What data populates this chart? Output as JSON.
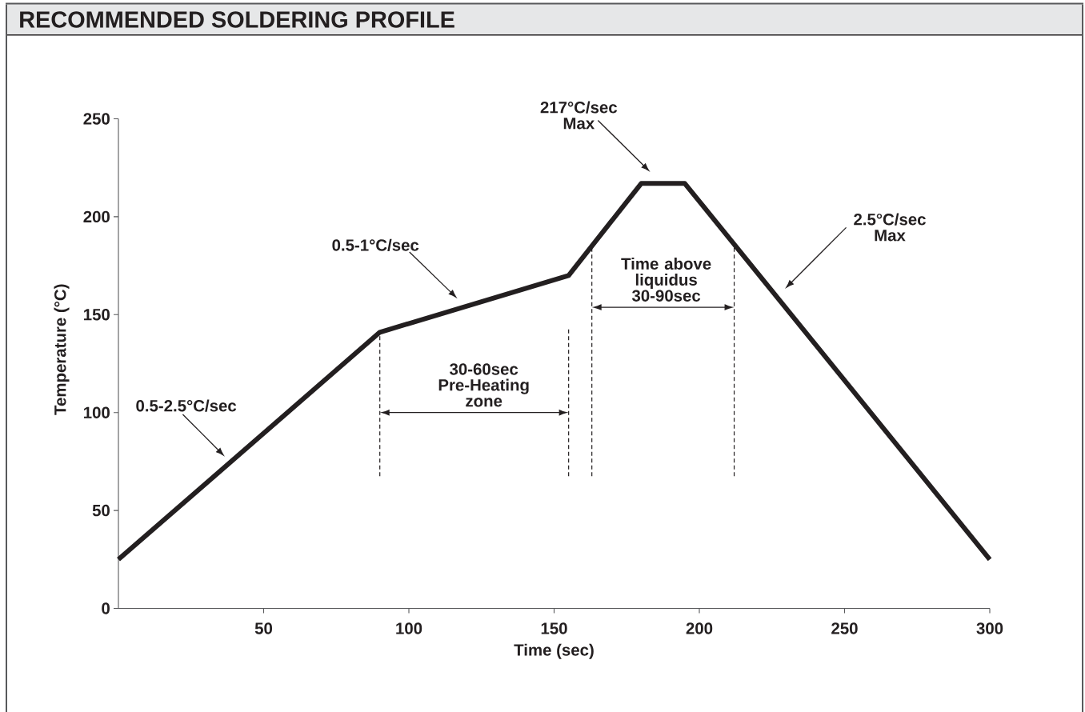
{
  "chart_data": {
    "type": "line",
    "title": "RECOMMENDED SOLDERING PROFILE",
    "xlabel": "Time (sec)",
    "ylabel": "Temperature (°C)",
    "x": [
      0,
      90,
      155,
      180,
      195,
      300
    ],
    "series": [
      {
        "color": "#231f20",
        "values": [
          25,
          141,
          170,
          217,
          217,
          25
        ]
      }
    ],
    "xlim": [
      0,
      300
    ],
    "ylim": [
      0,
      250
    ],
    "xticks": [
      50,
      100,
      150,
      200,
      250,
      300
    ],
    "yticks": [
      0,
      50,
      100,
      150,
      200,
      250
    ],
    "line_style": "solid",
    "annotations": [
      "0.5-2.5°C/sec",
      "0.5-1°C/sec",
      "217°C/sec Max",
      "2.5°C/sec Max",
      "30-60sec Pre-Heating zone",
      "Time above liquidus 30-90sec"
    ],
    "ref_lines": [
      {
        "axis": "x",
        "value": 90,
        "line_style": "dashed"
      },
      {
        "axis": "x",
        "value": 155,
        "line_style": "dashed"
      },
      {
        "axis": "x",
        "value": 163,
        "line_style": "dashed"
      },
      {
        "axis": "x",
        "value": 212,
        "line_style": "dashed"
      }
    ]
  }
}
